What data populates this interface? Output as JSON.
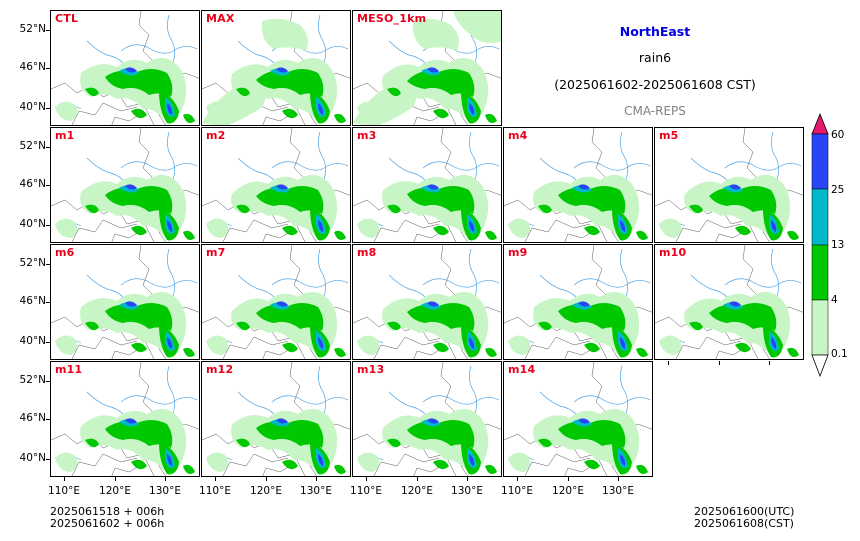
{
  "header": {
    "region": "NorthEast",
    "variable": "rain6",
    "period": "(2025061602-2025061608 CST)",
    "source": "CMA-REPS"
  },
  "panels": [
    {
      "label": "CTL",
      "variant": 0
    },
    {
      "label": "MAX",
      "variant": 3
    },
    {
      "label": "MESO_1km",
      "variant": 4
    },
    {
      "label": "m1",
      "variant": 1
    },
    {
      "label": "m2",
      "variant": 2
    },
    {
      "label": "m3",
      "variant": 0
    },
    {
      "label": "m4",
      "variant": 1
    },
    {
      "label": "m5",
      "variant": 2
    },
    {
      "label": "m6",
      "variant": 0
    },
    {
      "label": "m7",
      "variant": 2
    },
    {
      "label": "m8",
      "variant": 1
    },
    {
      "label": "m9",
      "variant": 0
    },
    {
      "label": "m10",
      "variant": 2
    },
    {
      "label": "m11",
      "variant": 1
    },
    {
      "label": "m12",
      "variant": 0
    },
    {
      "label": "m13",
      "variant": 2
    },
    {
      "label": "m14",
      "variant": 1
    }
  ],
  "axes": {
    "lat_labels": [
      "52°N",
      "46°N",
      "40°N"
    ],
    "lon_labels": [
      "110°E",
      "120°E",
      "130°E"
    ]
  },
  "legend": {
    "levels": [
      "0.1",
      "4",
      "13",
      "25",
      "60"
    ],
    "colors": {
      "light_green": "#c8f5c6",
      "green": "#00c800",
      "cyan": "#00b9c8",
      "blue": "#2846f5",
      "magenta": "#e6196e"
    }
  },
  "footer": {
    "left_line1": "2025061518  +  006h",
    "left_line2": "2025061602  +  006h",
    "right_line1": "2025061600(UTC)",
    "right_line2": "2025061608(CST)"
  },
  "colors": {
    "title": "#0000e0",
    "panel_label": "#e8001c",
    "source": "#808080",
    "river": "#4aa3e8",
    "border": "#555555"
  }
}
